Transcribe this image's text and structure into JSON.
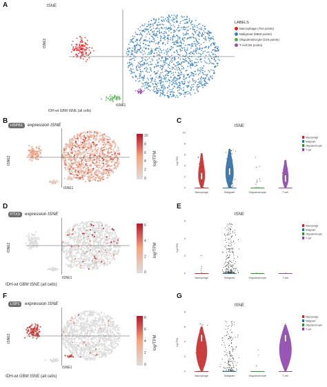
{
  "panels": {
    "A": {
      "letter": "A",
      "title": "tSNE",
      "xlabel": "tSNE1",
      "ylabel": "tSNE2",
      "caption": "IDH-wt GBM tSNE (all cells)",
      "legend_title": "LABELS",
      "legend": [
        {
          "label": "Macrophage (754 points)",
          "color": "#e41a1c"
        },
        {
          "label": "Malignant (6863 points)",
          "color": "#377eb8"
        },
        {
          "label": "Oligodendrocyte (219 points)",
          "color": "#4daf4a"
        },
        {
          "label": "T-cell (94 points)",
          "color": "#984ea3"
        }
      ]
    },
    "B": {
      "letter": "B",
      "gene": "HSPB1",
      "expr_word": "expression",
      "expr_method": "tSNE",
      "xlabel": "tSNE1",
      "ylabel": "tSNE2",
      "scale_label": "log²TPM",
      "ticks": [
        "10",
        "8",
        "6",
        "4",
        "2",
        "0"
      ]
    },
    "D": {
      "letter": "D",
      "gene": "PTX3",
      "expr_word": "expression",
      "expr_method": "tSNE",
      "xlabel": "tSNE1",
      "ylabel": "tSNE2",
      "scale_label": "log²TPM",
      "caption": "IDH-wt GBM tSNE (all cells)",
      "ticks": [
        "6",
        "4",
        "2",
        "0"
      ]
    },
    "F": {
      "letter": "F",
      "gene": "LSP1",
      "expr_word": "expression",
      "expr_method": "tSNE",
      "xlabel": "tSNE1",
      "ylabel": "tSNE2",
      "scale_label": "log²TPM",
      "caption": "IDH-wt GBM tSNE (all cells)",
      "ticks": [
        "8",
        "6",
        "4",
        "2",
        "0"
      ]
    },
    "C": {
      "letter": "C",
      "title": "tSNE",
      "ylabel": "log²TPM",
      "categories": [
        "Macrophage",
        "Malignant",
        "Oligodendrocyte",
        "T-cell"
      ],
      "yticks": [
        "10",
        "8",
        "6",
        "4",
        "2",
        "0"
      ]
    },
    "E": {
      "letter": "E",
      "title": "tSNE",
      "ylabel": "log²TPM",
      "categories": [
        "Macrophage",
        "Malignant",
        "Oligodendrocyte",
        "T-cell"
      ],
      "yticks": [
        "6",
        "4",
        "2",
        "0"
      ]
    },
    "G": {
      "letter": "G",
      "title": "tSNE",
      "ylabel": "log²TPM",
      "categories": [
        "Macrophage",
        "Malignant",
        "Oligodendrocyte",
        "T-cell"
      ],
      "yticks": [
        "8",
        "6",
        "4",
        "2",
        "0"
      ]
    }
  },
  "violin_legend": [
    {
      "label": "Macrophage",
      "color": "#c62828"
    },
    {
      "label": "Malignant",
      "color": "#2e6da4"
    },
    {
      "label": "Oligodendrocyte",
      "color": "#2e8b3a"
    },
    {
      "label": "T-cell",
      "color": "#8e44ad"
    }
  ],
  "colors": {
    "macrophage": "#e41a1c",
    "malignant": "#377eb8",
    "oligodendrocyte": "#4daf4a",
    "tcell": "#984ea3",
    "expr_low": "#dddddd",
    "expr_high": "#b2182b"
  },
  "chart_data": [
    {
      "type": "violin",
      "panel": "C",
      "categories": [
        "Macrophage",
        "Malignant",
        "Oligodendrocyte",
        "T-cell"
      ],
      "medians": [
        2.5,
        3.5,
        0.0,
        2.0
      ],
      "ylim": [
        0,
        12
      ]
    },
    {
      "type": "violin",
      "panel": "E",
      "categories": [
        "Macrophage",
        "Malignant",
        "Oligodendrocyte",
        "T-cell"
      ],
      "medians": [
        0.0,
        0.0,
        0.0,
        0.0
      ],
      "ylim": [
        0,
        8
      ]
    },
    {
      "type": "violin",
      "panel": "G",
      "categories": [
        "Macrophage",
        "Malignant",
        "Oligodendrocyte",
        "T-cell"
      ],
      "medians": [
        5.0,
        0.0,
        0.0,
        5.0
      ],
      "ylim": [
        0,
        9
      ]
    }
  ]
}
